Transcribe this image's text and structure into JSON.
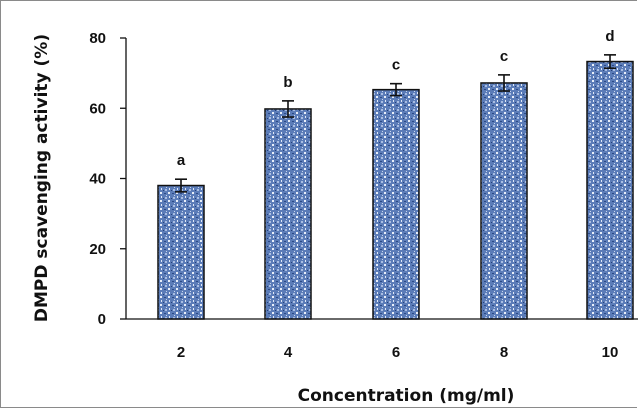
{
  "chart_data": {
    "type": "bar",
    "categories": [
      "2",
      "4",
      "6",
      "8",
      "10"
    ],
    "values": [
      38.0,
      59.8,
      65.3,
      67.2,
      73.3
    ],
    "errors": [
      1.8,
      2.3,
      1.7,
      2.3,
      1.9
    ],
    "significance_labels": [
      "a",
      "b",
      "c",
      "c",
      "d"
    ],
    "xlabel": "Concentration (mg/ml)",
    "ylabel": "DMPD scavenging activity (%)",
    "ylim": [
      0,
      80
    ],
    "yticks": [
      "0",
      "20",
      "40",
      "60",
      "80"
    ],
    "grid": false,
    "legend": "none",
    "bar_color": "#5b7cb8",
    "bar_fill_pattern": "textured blue",
    "bar_edge_color": "#111111"
  }
}
